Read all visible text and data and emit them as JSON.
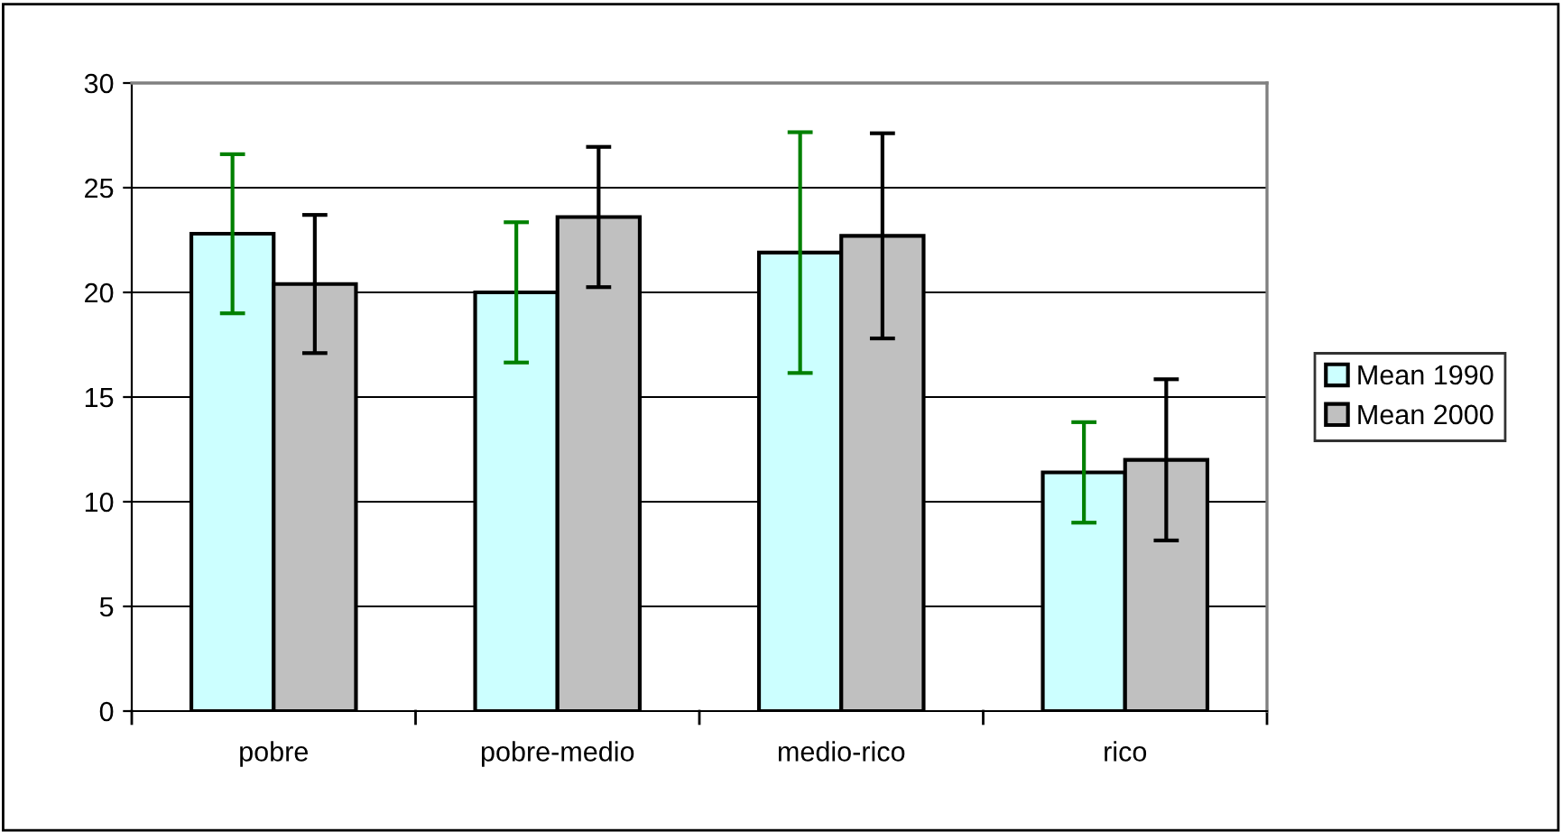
{
  "chart_data": {
    "type": "bar",
    "categories": [
      "pobre",
      "pobre-medio",
      "medio-rico",
      "rico"
    ],
    "series": [
      {
        "name": "Mean 1990",
        "color": "#ccffff",
        "values": [
          22.8,
          20.0,
          21.9,
          11.4
        ],
        "errors": [
          3.8,
          3.35,
          5.75,
          2.4
        ]
      },
      {
        "name": "Mean 2000",
        "color": "#c0c0c0",
        "values": [
          20.4,
          23.6,
          22.7,
          12.0
        ],
        "errors": [
          3.3,
          3.35,
          4.9,
          3.85
        ]
      }
    ],
    "ylim": [
      0,
      30
    ],
    "yticks": [
      0,
      5,
      10,
      15,
      20,
      25,
      30
    ],
    "grid": "y",
    "legend": "right"
  }
}
